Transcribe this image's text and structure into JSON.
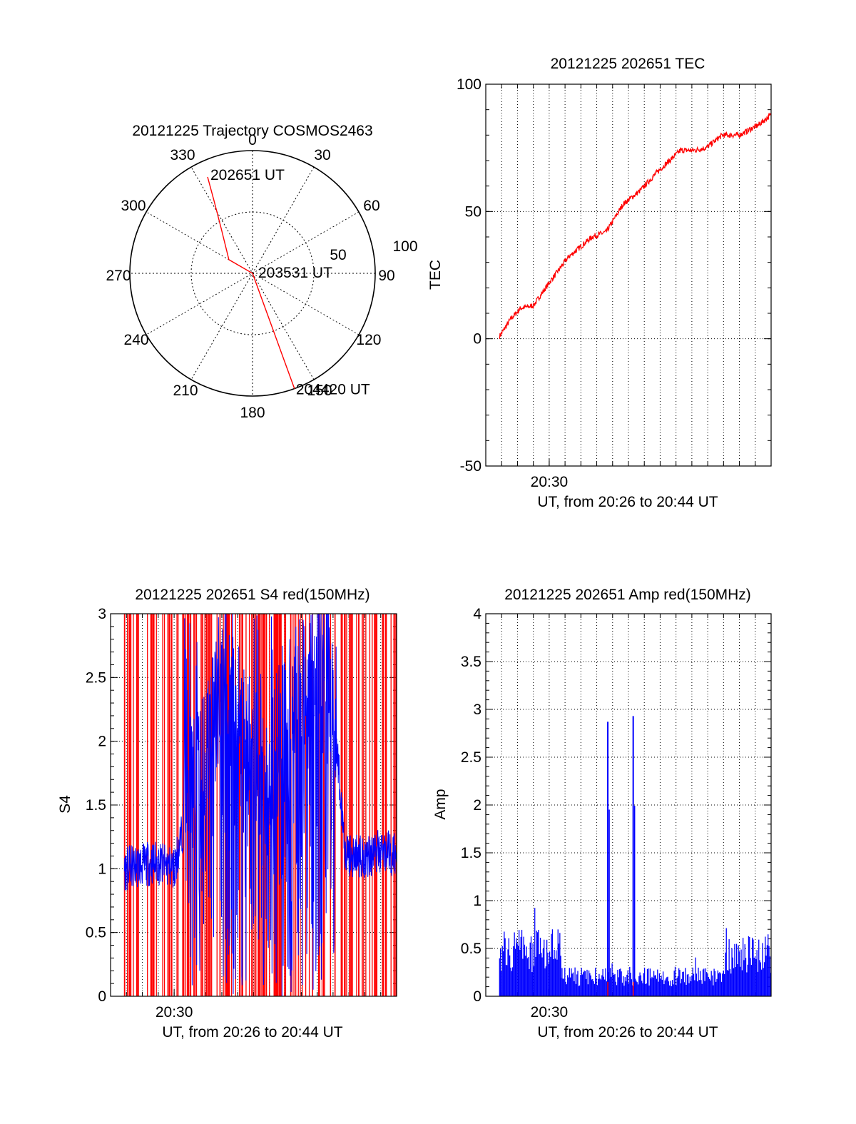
{
  "colors": {
    "red": "#ff0000",
    "blue": "#0000ff",
    "black": "#000000"
  },
  "chart_data": [
    {
      "id": "polar",
      "type": "polar",
      "title": "20121225 Trajectory COSMOS2463",
      "angle_labels": [
        "0",
        "30",
        "60",
        "90",
        "120",
        "150",
        "180",
        "210",
        "240",
        "270",
        "300",
        "330"
      ],
      "radial_labels": [
        "50",
        "100"
      ],
      "annotations": [
        {
          "text": "202651 UT",
          "az": 335,
          "zen": 78
        },
        {
          "text": "203531 UT",
          "az": 0,
          "zen": 0
        },
        {
          "text": "204420 UT",
          "az": 160,
          "zen": 90
        }
      ],
      "series": [
        {
          "color": "red",
          "points": [
            [
              335,
              78
            ],
            [
              332,
              60
            ],
            [
              325,
              40
            ],
            [
              300,
              20
            ],
            [
              0,
              0
            ],
            [
              160,
              20
            ],
            [
              160,
              45
            ],
            [
              160,
              70
            ],
            [
              160,
              90
            ]
          ]
        }
      ]
    },
    {
      "id": "tec",
      "type": "line",
      "title": "20121225 202651 TEC",
      "xlabel": "UT, from 20:26 to 20:44 UT",
      "ylabel": "TEC",
      "xlim": [
        20.4333,
        20.7333
      ],
      "ylim": [
        -50,
        100
      ],
      "xticks": [
        {
          "value": 20.5,
          "label": "20:30"
        }
      ],
      "yticks": [
        {
          "value": -50,
          "label": "-50"
        },
        {
          "value": 0,
          "label": "0"
        },
        {
          "value": 50,
          "label": "50"
        },
        {
          "value": 100,
          "label": "100"
        }
      ],
      "grid": true,
      "series": [
        {
          "color": "red",
          "x": [
            20.4478,
            20.46,
            20.47,
            20.4833,
            20.5,
            20.52,
            20.545,
            20.56,
            20.578,
            20.595,
            20.615,
            20.638,
            20.652,
            20.665,
            20.682,
            20.7,
            20.72,
            20.7333
          ],
          "y": [
            1,
            8,
            12,
            13,
            22,
            32,
            40,
            42,
            53,
            58,
            66,
            74,
            74,
            75,
            80,
            80,
            84,
            88
          ]
        }
      ]
    },
    {
      "id": "s4",
      "type": "line",
      "title": "20121225 202651 S4 red(150MHz)",
      "xlabel": "UT, from 20:26 to 20:44 UT",
      "ylabel": "S4",
      "xlim": [
        20.4333,
        20.7333
      ],
      "ylim": [
        0,
        3
      ],
      "xticks": [
        {
          "value": 20.5,
          "label": "20:30"
        }
      ],
      "yticks": [
        {
          "value": 0,
          "label": "0"
        },
        {
          "value": 0.5,
          "label": "0.5"
        },
        {
          "value": 1,
          "label": "1"
        },
        {
          "value": 1.5,
          "label": "1.5"
        },
        {
          "value": 2,
          "label": "2"
        },
        {
          "value": 2.5,
          "label": "2.5"
        },
        {
          "value": 3,
          "label": "3"
        }
      ],
      "grid": true,
      "series": [
        {
          "color": "red",
          "note": "red spikes dense across the whole pass, reaching the top of the axis"
        },
        {
          "color": "blue",
          "x": [
            20.4478,
            20.48,
            20.5,
            20.515,
            20.53,
            20.545,
            20.56,
            20.575,
            20.585,
            20.6,
            20.62,
            20.64,
            20.66,
            20.68,
            20.7,
            20.72,
            20.7333
          ],
          "y": [
            1.0,
            1.05,
            1.0,
            1.5,
            1.8,
            2.3,
            2.6,
            2.0,
            1.6,
            1.8,
            2.2,
            2.5,
            2.9,
            1.1,
            1.1,
            1.15,
            1.1
          ]
        }
      ]
    },
    {
      "id": "amp",
      "type": "line",
      "title": "20121225 202651 Amp red(150MHz)",
      "xlabel": "UT, from 20:26 to 20:44 UT",
      "ylabel": "Amp",
      "xlim": [
        20.4333,
        20.7333
      ],
      "ylim": [
        0,
        4
      ],
      "xticks": [
        {
          "value": 20.5,
          "label": "20:30"
        }
      ],
      "yticks": [
        {
          "value": 0,
          "label": "0"
        },
        {
          "value": 0.5,
          "label": "0.5"
        },
        {
          "value": 1,
          "label": "1"
        },
        {
          "value": 1.5,
          "label": "1.5"
        },
        {
          "value": 2,
          "label": "2"
        },
        {
          "value": 2.5,
          "label": "2.5"
        },
        {
          "value": 3,
          "label": "3"
        },
        {
          "value": 3.5,
          "label": "3.5"
        },
        {
          "value": 4,
          "label": "4"
        }
      ],
      "grid": true,
      "series": [
        {
          "color": "blue",
          "segments": [
            {
              "x": [
                20.4478,
                20.5125
              ],
              "level": 0.7,
              "max": 1.1
            },
            {
              "x": [
                20.5125,
                20.6833
              ],
              "level": 0.3,
              "max": 0.6
            },
            {
              "x": [
                20.6833,
                20.7333
              ],
              "level": 0.65,
              "max": 1.05
            }
          ],
          "peaks": [
            {
              "x": 20.5616,
              "y": 2.87
            },
            {
              "x": 20.5883,
              "y": 2.93
            }
          ]
        }
      ]
    }
  ]
}
